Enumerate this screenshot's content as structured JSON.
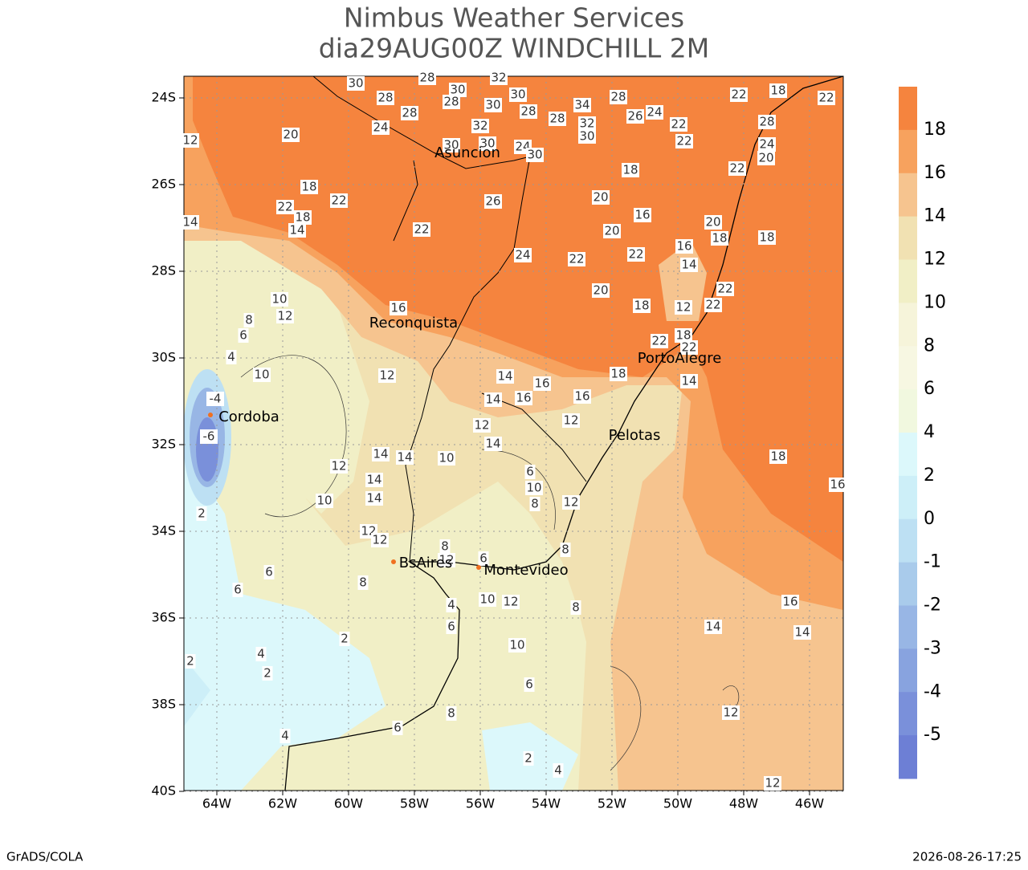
{
  "header": {
    "title": "Nimbus Weather Services",
    "subtitle": "dia29AUG00Z WINDCHILL 2M"
  },
  "map": {
    "lat_ticks": [
      "24S",
      "26S",
      "28S",
      "30S",
      "32S",
      "34S",
      "36S",
      "38S",
      "40S"
    ],
    "lon_ticks": [
      "64W",
      "62W",
      "60W",
      "58W",
      "56W",
      "54W",
      "52W",
      "50W",
      "48W",
      "46W"
    ],
    "cities": [
      "Asuncion",
      "Reconquista",
      "Cordoba",
      "PortoAlegre",
      "Pelotas",
      "BsAires",
      "Montevideo"
    ],
    "contour_labels": [
      30,
      28,
      32,
      30,
      28,
      28,
      28,
      30,
      30,
      28,
      34,
      28,
      28,
      32,
      32,
      30,
      24,
      26,
      22,
      22,
      24,
      20,
      30,
      30,
      24,
      30,
      18,
      22,
      22,
      18,
      14,
      26,
      22,
      20,
      18,
      16,
      20,
      22,
      24,
      22,
      16,
      14,
      20,
      18,
      18,
      20,
      18,
      12,
      22,
      22,
      16,
      10,
      12,
      8,
      6,
      4,
      10,
      12,
      14,
      16,
      14,
      16,
      16,
      12,
      12,
      14,
      18,
      22,
      18,
      22,
      14,
      22,
      22,
      18,
      20,
      24,
      28,
      22,
      18,
      16,
      10,
      14,
      14,
      12,
      14,
      14,
      10,
      12,
      12,
      8,
      12,
      6,
      8,
      6,
      10,
      8,
      12,
      8,
      6,
      6,
      4,
      6,
      10,
      12,
      8,
      2,
      10,
      4,
      2,
      2,
      6,
      8,
      6,
      4,
      2,
      4,
      12,
      16,
      14,
      14,
      12,
      -6,
      -4,
      2,
      12,
      14
    ]
  },
  "colorbar": {
    "levels": [
      18,
      16,
      14,
      12,
      10,
      8,
      6,
      4,
      2,
      0,
      -1,
      -2,
      -3,
      -4,
      -5
    ],
    "colors": [
      "#f5843e",
      "#f7a25e",
      "#f6c48f",
      "#f1e1b2",
      "#f1efc6",
      "#f6f4da",
      "#f7f7e2",
      "#f1f8df",
      "#dcf8fb",
      "#cdeff8",
      "#bde0f3",
      "#a9cbeb",
      "#98b6e5",
      "#88a3df",
      "#7a90da",
      "#6d7fd5"
    ]
  },
  "footer": {
    "left": "GrADS/COLA",
    "right": "2026-08-26-17:25"
  }
}
